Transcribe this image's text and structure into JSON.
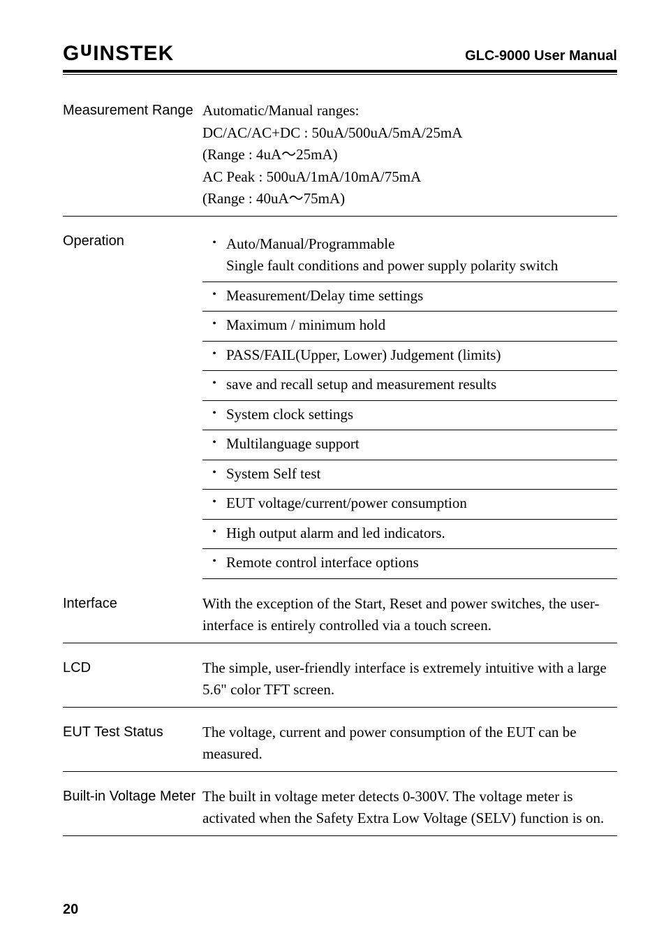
{
  "header": {
    "logo_text": "GWINSTEK",
    "manual_title": "GLC-9000 User Manual"
  },
  "sections": {
    "measurement_range": {
      "label": "Measurement Range",
      "lines": [
        "Automatic/Manual ranges:",
        "DC/AC/AC+DC : 50uA/500uA/5mA/25mA",
        "(Range : 4uA～25mA)",
        "AC Peak : 500uA/1mA/10mA/75mA",
        "(Range : 40uA～75mA)"
      ]
    },
    "operation": {
      "label": "Operation",
      "items": [
        "Auto/Manual/Programmable\nSingle fault conditions and power supply polarity switch",
        "Measurement/Delay time settings",
        "Maximum / minimum hold",
        "PASS/FAIL(Upper, Lower) Judgement (limits)",
        "save and recall setup and measurement results",
        "System clock settings",
        "Multilanguage support",
        "System Self test",
        "EUT voltage/current/power consumption",
        "High output alarm and led indicators.",
        "Remote control interface options"
      ]
    },
    "interface": {
      "label": "Interface",
      "body": "With the exception of the Start, Reset and power switches, the user-interface is entirely controlled via a touch screen."
    },
    "lcd": {
      "label": "LCD",
      "body": "The simple, user-friendly interface is extremely intuitive with a large 5.6\" color TFT screen."
    },
    "eut": {
      "label": "EUT Test Status",
      "body": "The voltage, current and power consumption of the EUT can be measured."
    },
    "voltmeter": {
      "label": "Built-in Voltage Meter",
      "body": "The built in voltage meter detects 0-300V. The voltage meter is activated when the Safety Extra Low Voltage (SELV) function is on."
    }
  },
  "page_number": "20"
}
